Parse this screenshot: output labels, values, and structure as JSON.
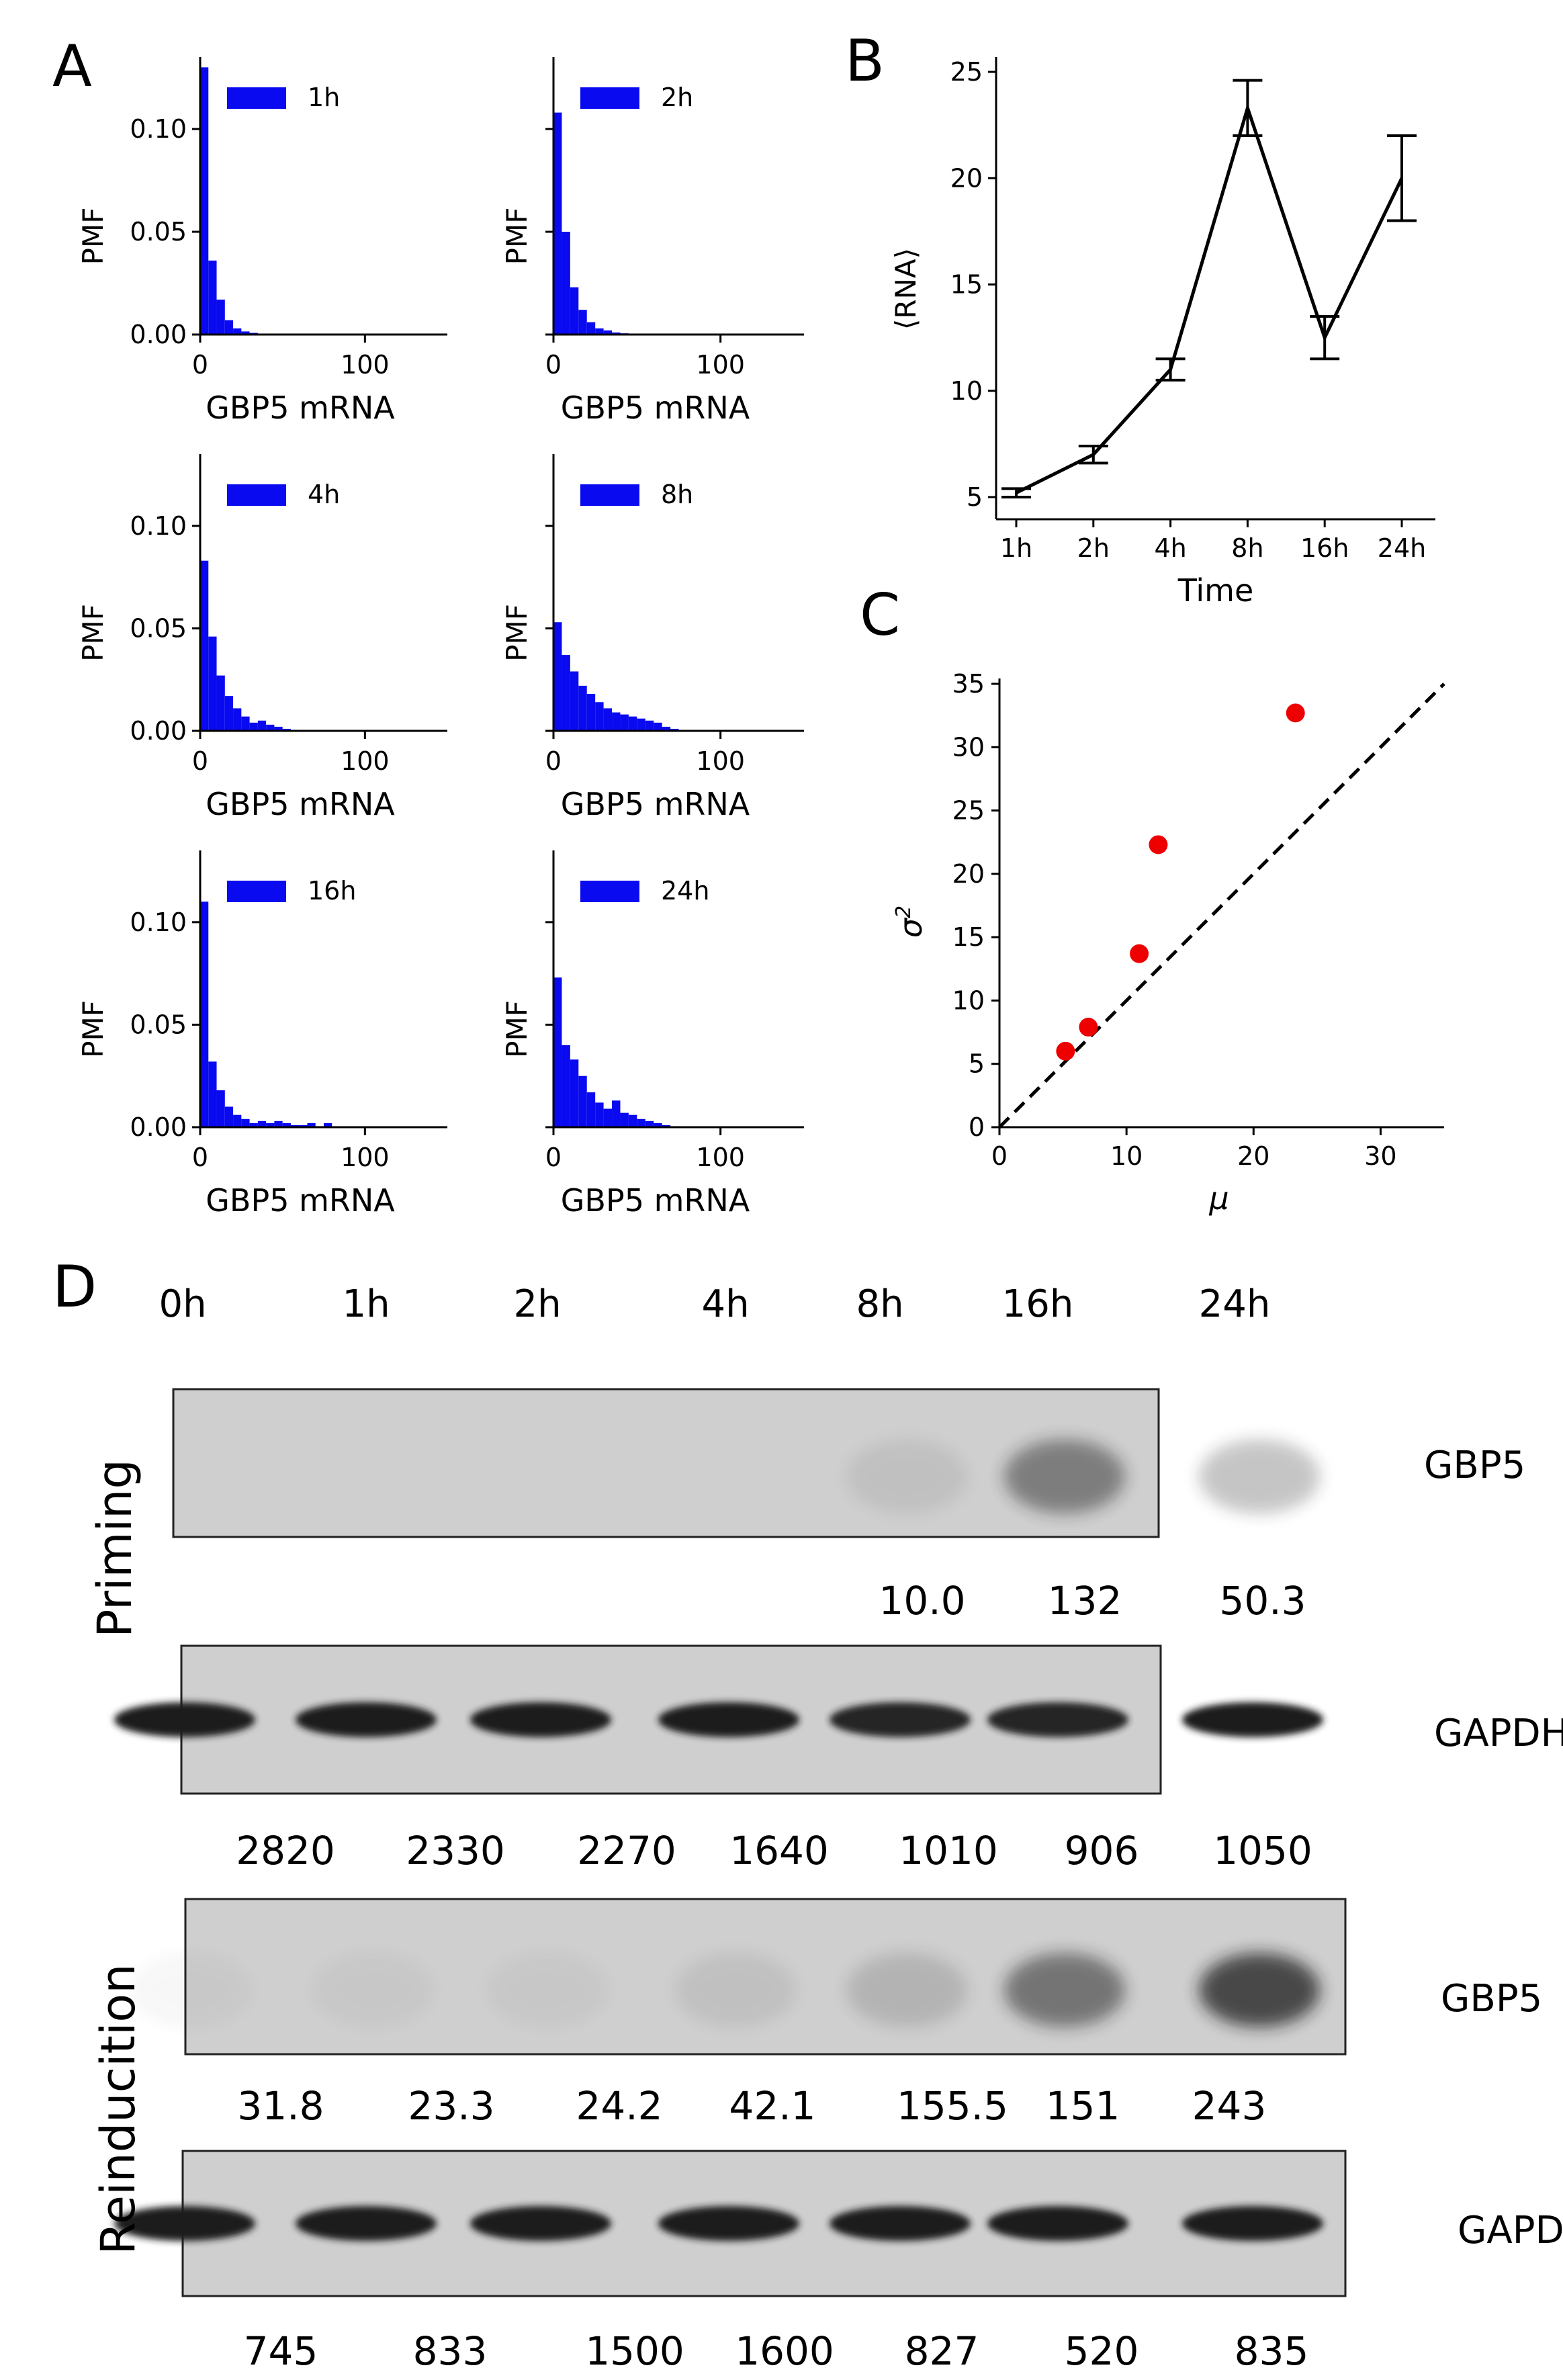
{
  "panel_letters": {
    "a": "A",
    "b": "B",
    "c": "C",
    "d": "D"
  },
  "colors": {
    "bar": "#0a0af0",
    "point": "#ee0000",
    "line": "#000000",
    "blot_bg": "#cfcfcf",
    "band": "#1c1c1c"
  },
  "chart_data": [
    {
      "id": "A-1h",
      "type": "bar",
      "legend": "1h",
      "xlabel": "GBP5 mRNA",
      "ylabel": "PMF",
      "xlim": [
        0,
        150
      ],
      "ylim": [
        0,
        0.135
      ],
      "bin_width": 5,
      "xticks": [
        "0",
        "100"
      ],
      "yticks": [
        "0.00",
        "0.05",
        "0.10"
      ],
      "ytick_values": [
        0,
        0.05,
        0.1
      ],
      "bins": [
        0,
        5,
        10,
        15,
        20,
        25,
        30
      ],
      "values": [
        0.13,
        0.036,
        0.017,
        0.007,
        0.003,
        0.0015,
        0.0008
      ]
    },
    {
      "id": "A-2h",
      "type": "bar",
      "legend": "2h",
      "xlabel": "GBP5 mRNA",
      "ylabel": "PMF",
      "xlim": [
        0,
        150
      ],
      "ylim": [
        0,
        0.135
      ],
      "bin_width": 5,
      "xticks": [
        "0",
        "100"
      ],
      "yticks": [],
      "ytick_values": [
        0,
        0.05,
        0.1
      ],
      "bins": [
        0,
        5,
        10,
        15,
        20,
        25,
        30,
        35,
        40
      ],
      "values": [
        0.108,
        0.05,
        0.023,
        0.012,
        0.006,
        0.003,
        0.002,
        0.001,
        0.0006
      ]
    },
    {
      "id": "A-4h",
      "type": "bar",
      "legend": "4h",
      "xlabel": "GBP5 mRNA",
      "ylabel": "PMF",
      "xlim": [
        0,
        150
      ],
      "ylim": [
        0,
        0.135
      ],
      "bin_width": 5,
      "xticks": [
        "0",
        "100"
      ],
      "yticks": [
        "0.00",
        "0.05",
        "0.10"
      ],
      "ytick_values": [
        0,
        0.05,
        0.1
      ],
      "bins": [
        0,
        5,
        10,
        15,
        20,
        25,
        30,
        35,
        40,
        45,
        50,
        55
      ],
      "values": [
        0.083,
        0.046,
        0.027,
        0.017,
        0.011,
        0.007,
        0.004,
        0.005,
        0.003,
        0.002,
        0.001,
        0.0005
      ]
    },
    {
      "id": "A-8h",
      "type": "bar",
      "legend": "8h",
      "xlabel": "GBP5 mRNA",
      "ylabel": "PMF",
      "xlim": [
        0,
        150
      ],
      "ylim": [
        0,
        0.135
      ],
      "bin_width": 5,
      "xticks": [
        "0",
        "100"
      ],
      "yticks": [],
      "ytick_values": [
        0,
        0.05,
        0.1
      ],
      "bins": [
        0,
        5,
        10,
        15,
        20,
        25,
        30,
        35,
        40,
        45,
        50,
        55,
        60,
        65,
        70
      ],
      "values": [
        0.053,
        0.037,
        0.029,
        0.022,
        0.018,
        0.014,
        0.011,
        0.009,
        0.008,
        0.007,
        0.006,
        0.005,
        0.004,
        0.002,
        0.001
      ]
    },
    {
      "id": "A-16h",
      "type": "bar",
      "legend": "16h",
      "xlabel": "GBP5 mRNA",
      "ylabel": "PMF",
      "xlim": [
        0,
        150
      ],
      "ylim": [
        0,
        0.135
      ],
      "bin_width": 5,
      "xticks": [
        "0",
        "100"
      ],
      "yticks": [
        "0.00",
        "0.05",
        "0.10"
      ],
      "ytick_values": [
        0,
        0.05,
        0.1
      ],
      "bins": [
        0,
        5,
        10,
        15,
        20,
        25,
        30,
        35,
        40,
        45,
        50,
        55,
        60,
        65,
        70,
        75
      ],
      "values": [
        0.11,
        0.032,
        0.018,
        0.01,
        0.006,
        0.004,
        0.002,
        0.003,
        0.002,
        0.003,
        0.002,
        0.001,
        0.001,
        0.002,
        0.0005,
        0.002
      ]
    },
    {
      "id": "A-24h",
      "type": "bar",
      "legend": "24h",
      "xlabel": "GBP5 mRNA",
      "ylabel": "PMF",
      "xlim": [
        0,
        150
      ],
      "ylim": [
        0,
        0.135
      ],
      "bin_width": 5,
      "xticks": [
        "0",
        "100"
      ],
      "yticks": [],
      "ytick_values": [
        0,
        0.05,
        0.1
      ],
      "bins": [
        0,
        5,
        10,
        15,
        20,
        25,
        30,
        35,
        40,
        45,
        50,
        55,
        60,
        65,
        70
      ],
      "values": [
        0.073,
        0.04,
        0.033,
        0.025,
        0.017,
        0.012,
        0.009,
        0.013,
        0.007,
        0.006,
        0.004,
        0.003,
        0.002,
        0.001,
        0.0005
      ]
    },
    {
      "id": "B",
      "type": "line",
      "xlabel": "Time",
      "ylabel": "⟨RNA⟩",
      "categories": [
        "1h",
        "2h",
        "4h",
        "8h",
        "16h",
        "24h"
      ],
      "values": [
        5.2,
        7.0,
        11.0,
        23.3,
        12.5,
        20.0
      ],
      "errors": [
        0.2,
        0.4,
        0.5,
        1.3,
        1.0,
        2.0
      ],
      "ylim": [
        4,
        26
      ],
      "yticks": [
        5,
        10,
        15,
        20,
        25
      ]
    },
    {
      "id": "C",
      "type": "scatter",
      "xlabel": "μ",
      "ylabel": "σ",
      "xlim": [
        0,
        35
      ],
      "ylim": [
        0,
        35
      ],
      "xticks": [
        0,
        10,
        20,
        30
      ],
      "yticks": [
        0,
        5,
        10,
        15,
        20,
        25,
        30,
        35
      ],
      "x": [
        5.2,
        7.0,
        11.0,
        12.5,
        23.3
      ],
      "y": [
        6.0,
        7.9,
        13.7,
        22.3,
        32.7
      ],
      "reference_line": "y = x"
    }
  ],
  "blot": {
    "time_labels": [
      "0h",
      "1h",
      "2h",
      "4h",
      "8h",
      "16h",
      "24h"
    ],
    "priming_label": "Priming",
    "reinduction_label": "Reinducition",
    "strips": [
      {
        "id": "priming-gbp5",
        "protein": "GBP5",
        "intensities": [
          0,
          0,
          0,
          0,
          0.08,
          0.45,
          0.25
        ],
        "values": [
          "",
          "",
          "",
          "",
          "10.0",
          "132",
          "50.3"
        ]
      },
      {
        "id": "priming-gapdh",
        "protein": "GAPDH",
        "intensities": [
          1,
          1,
          1,
          1,
          0.95,
          0.95,
          1
        ],
        "values": [
          "2820",
          "2330",
          "2270",
          "1640",
          "1010",
          "906",
          "1050"
        ]
      },
      {
        "id": "reinduction-gbp5",
        "protein": "GBP5",
        "intensities": [
          0.03,
          0.04,
          0.04,
          0.08,
          0.15,
          0.5,
          0.75
        ],
        "values": [
          "31.8",
          "23.3",
          "24.2",
          "42.1",
          "155.5",
          "151",
          "243"
        ]
      },
      {
        "id": "reinduction-gapdh",
        "protein": "GAPDH",
        "intensities": [
          1,
          1,
          1,
          1,
          1,
          1,
          1
        ],
        "values": [
          "745",
          "833",
          "1500",
          "1600",
          "827",
          "520",
          "835"
        ]
      }
    ]
  }
}
